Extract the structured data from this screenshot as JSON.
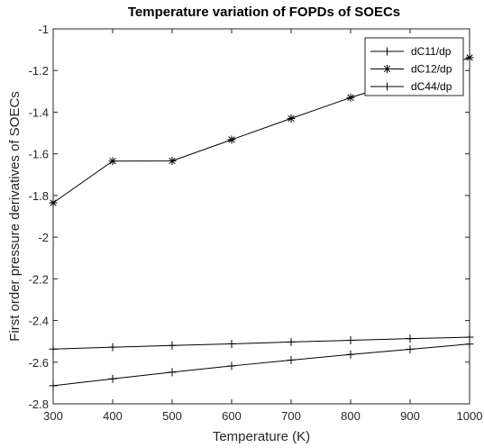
{
  "chart_data": {
    "type": "line",
    "title": "Temperature variation of FOPDs of SOECs",
    "xlabel": "Temperature (K)",
    "ylabel": "First order pressure derivatives of SOECs",
    "xlim": [
      300,
      1000
    ],
    "ylim": [
      -2.8,
      -1
    ],
    "xticks": [
      300,
      400,
      500,
      600,
      700,
      800,
      900,
      1000
    ],
    "yticks": [
      -2.8,
      -2.6,
      -2.4,
      -2.2,
      -2,
      -1.8,
      -1.6,
      -1.4,
      -1.2,
      -1
    ],
    "xtick_labels": [
      "300",
      "400",
      "500",
      "600",
      "700",
      "800",
      "900",
      "1000"
    ],
    "ytick_labels": [
      "-2.8",
      "-2.6",
      "-2.4",
      "-2.2",
      "-2",
      "-1.8",
      "-1.6",
      "-1.4",
      "-1.2",
      "-1"
    ],
    "grid": false,
    "legend_position": "top-right",
    "x": [
      300,
      400,
      500,
      600,
      700,
      800,
      900,
      1000
    ],
    "series": [
      {
        "name": "dC11/dp",
        "marker": "plus",
        "values": [
          -2.713,
          -2.68,
          -2.648,
          -2.618,
          -2.59,
          -2.563,
          -2.538,
          -2.513
        ]
      },
      {
        "name": "dC12/dp",
        "marker": "asterisk",
        "values": [
          -1.835,
          -1.635,
          -1.634,
          -1.532,
          -1.43,
          -1.33,
          -1.24,
          -1.138
        ]
      },
      {
        "name": "dC44/dp",
        "marker": "plus",
        "values": [
          -2.537,
          -2.528,
          -2.52,
          -2.512,
          -2.503,
          -2.495,
          -2.487,
          -2.48
        ]
      }
    ],
    "line_color": "#000000"
  }
}
